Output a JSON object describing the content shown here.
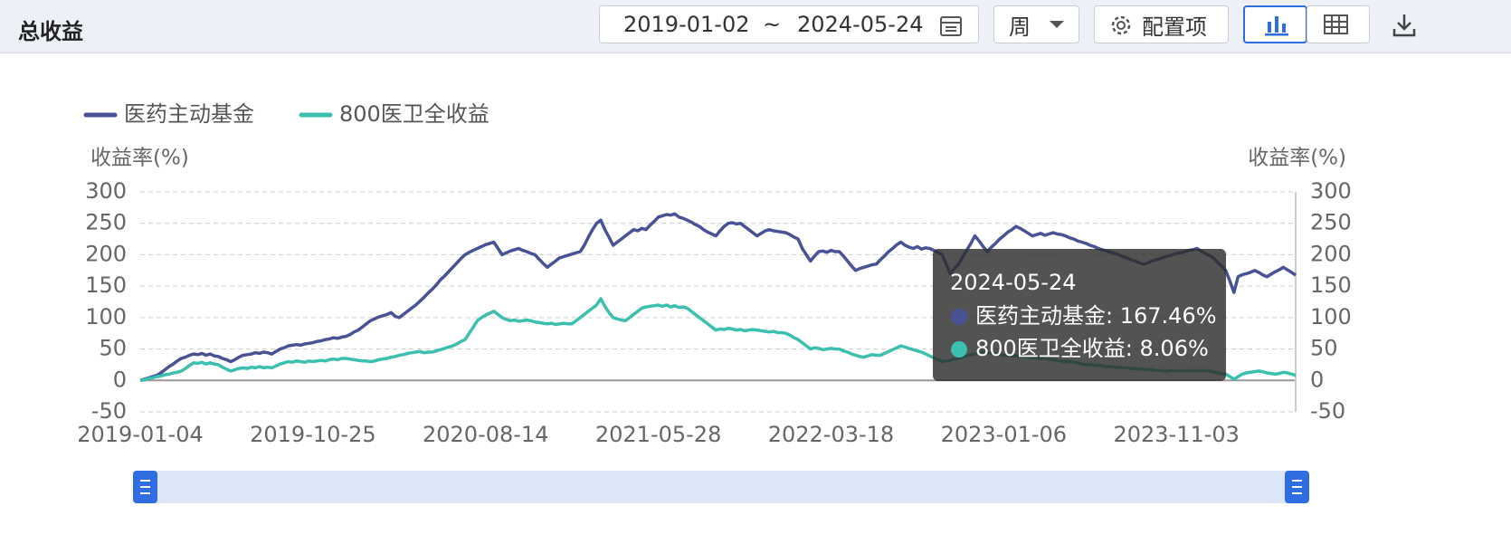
{
  "header": {
    "title": "总收益",
    "date_start": "2019-01-02",
    "separator": "~",
    "date_end": "2024-05-24",
    "period": "周",
    "config": "配置项"
  },
  "chart_data": {
    "type": "line",
    "y_title": "收益率(%)",
    "y2_title": "收益率(%)",
    "categories": [
      "2019-01-04",
      null,
      null,
      null,
      null,
      null,
      null,
      null,
      null,
      null,
      null,
      null,
      null,
      null,
      null,
      null,
      null,
      null,
      null,
      null,
      null,
      null,
      null,
      null,
      null,
      null,
      null,
      null,
      null,
      null,
      null,
      null,
      null,
      null,
      null,
      null,
      null,
      null,
      null,
      null,
      null,
      null,
      "2019-10-25",
      null,
      null,
      null,
      null,
      null,
      null,
      null,
      null,
      null,
      null,
      null,
      null,
      null,
      null,
      null,
      null,
      null,
      null,
      null,
      null,
      null,
      null,
      null,
      null,
      null,
      null,
      null,
      null,
      null,
      null,
      null,
      null,
      null,
      null,
      null,
      null,
      null,
      null,
      null,
      null,
      null,
      "2020-08-14",
      null,
      null,
      null,
      null,
      null,
      null,
      null,
      null,
      null,
      null,
      null,
      null,
      null,
      null,
      null,
      null,
      null,
      null,
      null,
      null,
      null,
      null,
      null,
      null,
      null,
      null,
      null,
      null,
      null,
      null,
      null,
      null,
      null,
      null,
      null,
      null,
      null,
      null,
      null,
      null,
      null,
      "2021-05-28",
      null,
      null,
      null,
      null,
      null,
      null,
      null,
      null,
      null,
      null,
      null,
      null,
      null,
      null,
      null,
      null,
      null,
      null,
      null,
      null,
      null,
      null,
      null,
      null,
      null,
      null,
      null,
      null,
      null,
      null,
      null,
      null,
      null,
      null,
      null,
      null,
      null,
      null,
      null,
      null,
      null,
      "2022-03-18",
      null,
      null,
      null,
      null,
      null,
      null,
      null,
      null,
      null,
      null,
      null,
      null,
      null,
      null,
      null,
      null,
      null,
      null,
      null,
      null,
      null,
      null,
      null,
      null,
      null,
      null,
      null,
      null,
      null,
      null,
      null,
      null,
      null,
      null,
      null,
      null,
      null,
      null,
      null,
      null,
      null,
      "2023-01-06",
      null,
      null,
      null,
      null,
      null,
      null,
      null,
      null,
      null,
      null,
      null,
      null,
      null,
      null,
      null,
      null,
      null,
      null,
      null,
      null,
      null,
      null,
      null,
      null,
      null,
      null,
      null,
      null,
      null,
      null,
      null,
      null,
      null,
      null,
      null,
      null,
      null,
      null,
      null,
      null,
      null,
      "2023-11-03",
      null,
      null,
      null,
      null,
      null,
      null,
      null,
      null,
      null,
      null,
      null,
      null,
      null,
      null,
      null,
      null,
      null,
      null,
      null,
      null,
      null,
      null,
      null,
      null,
      null,
      null,
      null,
      null,
      "2024-05-24"
    ],
    "series": [
      {
        "name": "医药主动基金",
        "color": "#4a5296",
        "values": [
          0,
          2,
          4,
          6,
          8,
          12,
          17,
          22,
          26,
          31,
          35,
          37,
          40,
          42,
          41,
          43,
          40,
          42,
          39,
          38,
          35,
          33,
          30,
          33,
          37,
          40,
          41,
          42,
          44,
          43,
          45,
          44,
          42,
          46,
          50,
          52,
          55,
          56,
          57,
          56,
          58,
          59,
          60,
          62,
          63,
          65,
          66,
          68,
          67,
          69,
          70,
          73,
          77,
          80,
          85,
          90,
          95,
          98,
          101,
          103,
          105,
          108,
          102,
          100,
          105,
          110,
          115,
          120,
          126,
          132,
          139,
          145,
          152,
          160,
          166,
          173,
          180,
          187,
          194,
          200,
          204,
          207,
          210,
          213,
          216,
          218,
          220,
          210,
          200,
          203,
          206,
          208,
          210,
          207,
          205,
          202,
          200,
          193,
          186,
          180,
          185,
          190,
          195,
          197,
          199,
          201,
          203,
          205,
          215,
          228,
          240,
          250,
          255,
          240,
          228,
          215,
          220,
          225,
          230,
          235,
          240,
          238,
          242,
          240,
          247,
          253,
          260,
          262,
          264,
          263,
          265,
          260,
          258,
          255,
          252,
          248,
          245,
          240,
          236,
          233,
          230,
          238,
          245,
          250,
          251,
          249,
          250,
          245,
          240,
          235,
          230,
          234,
          238,
          240,
          238,
          237,
          236,
          235,
          232,
          228,
          225,
          210,
          200,
          190,
          198,
          205,
          206,
          204,
          207,
          205,
          205,
          198,
          190,
          182,
          175,
          178,
          180,
          182,
          184,
          185,
          192,
          198,
          205,
          210,
          216,
          220,
          215,
          212,
          210,
          213,
          209,
          211,
          210,
          207,
          204,
          200,
          185,
          170,
          178,
          185,
          196,
          207,
          218,
          230,
          222,
          213,
          205,
          212,
          218,
          225,
          230,
          236,
          240,
          245,
          242,
          238,
          234,
          230,
          232,
          234,
          231,
          233,
          235,
          233,
          232,
          230,
          227,
          225,
          222,
          220,
          218,
          215,
          213,
          210,
          208,
          206,
          204,
          202,
          200,
          197,
          195,
          192,
          190,
          187,
          185,
          187,
          190,
          192,
          194,
          196,
          198,
          200,
          202,
          203,
          205,
          207,
          208,
          210,
          206,
          202,
          199,
          195,
          188,
          182,
          175,
          158,
          140,
          165,
          168,
          170,
          172,
          175,
          172,
          168,
          165,
          169,
          173,
          176,
          180,
          176,
          172,
          167.46
        ]
      },
      {
        "name": "800医卫全收益",
        "color": "#3bbfae",
        "values": [
          0,
          1,
          3,
          4,
          6,
          7,
          9,
          10,
          12,
          13,
          15,
          19,
          24,
          28,
          27,
          29,
          26,
          28,
          26,
          25,
          21,
          18,
          15,
          17,
          19,
          20,
          19,
          21,
          20,
          22,
          20,
          21,
          20,
          23,
          26,
          28,
          30,
          29,
          31,
          30,
          29,
          31,
          30,
          31,
          32,
          31,
          33,
          34,
          33,
          35,
          35,
          34,
          33,
          32,
          31,
          31,
          30,
          31,
          33,
          34,
          35,
          37,
          38,
          40,
          41,
          43,
          44,
          45,
          46,
          44,
          45,
          45,
          47,
          49,
          51,
          53,
          55,
          58,
          62,
          65,
          75,
          85,
          95,
          100,
          104,
          107,
          110,
          105,
          100,
          97,
          95,
          96,
          94,
          95,
          96,
          95,
          93,
          92,
          91,
          90,
          91,
          89,
          90,
          91,
          90,
          90,
          95,
          100,
          105,
          110,
          115,
          120,
          130,
          118,
          108,
          100,
          98,
          96,
          95,
          100,
          105,
          110,
          115,
          117,
          118,
          119,
          120,
          118,
          120,
          117,
          119,
          116,
          117,
          115,
          110,
          105,
          100,
          95,
          90,
          85,
          80,
          82,
          81,
          83,
          82,
          80,
          81,
          79,
          80,
          81,
          80,
          79,
          78,
          77,
          78,
          76,
          76,
          75,
          72,
          68,
          65,
          60,
          55,
          50,
          52,
          51,
          49,
          50,
          51,
          50,
          50,
          47,
          45,
          42,
          40,
          38,
          37,
          39,
          41,
          40,
          40,
          43,
          46,
          49,
          52,
          55,
          53,
          51,
          49,
          47,
          45,
          42,
          39,
          36,
          33,
          30,
          31,
          32,
          34,
          35,
          37,
          39,
          41,
          42,
          44,
          45,
          44,
          43,
          42,
          41,
          40,
          40,
          39,
          39,
          38,
          38,
          37,
          36,
          36,
          35,
          35,
          34,
          33,
          32,
          31,
          30,
          30,
          29,
          28,
          26,
          25,
          25,
          24,
          24,
          23,
          22,
          22,
          21,
          21,
          20,
          20,
          19,
          19,
          18,
          18,
          17,
          17,
          16,
          16,
          15,
          15,
          16,
          15,
          16,
          15,
          16,
          15,
          16,
          15,
          16,
          15,
          14,
          12,
          11,
          10,
          6,
          2,
          6,
          10,
          12,
          13,
          14,
          15,
          14,
          12,
          11,
          10,
          11,
          13,
          12,
          10,
          8.06
        ]
      }
    ],
    "ylim": [
      -50,
      300
    ],
    "yticks": [
      -50,
      0,
      50,
      100,
      150,
      200,
      250,
      300
    ],
    "y2lim": [
      -50,
      300
    ],
    "y2ticks": [
      -50,
      0,
      50,
      100,
      150,
      200,
      250,
      300
    ],
    "grid": true,
    "legend": "top-left",
    "tooltip": {
      "entries": [
        "医药主动基金: 167.46%",
        "800医卫全收益: 8.06%"
      ]
    }
  }
}
